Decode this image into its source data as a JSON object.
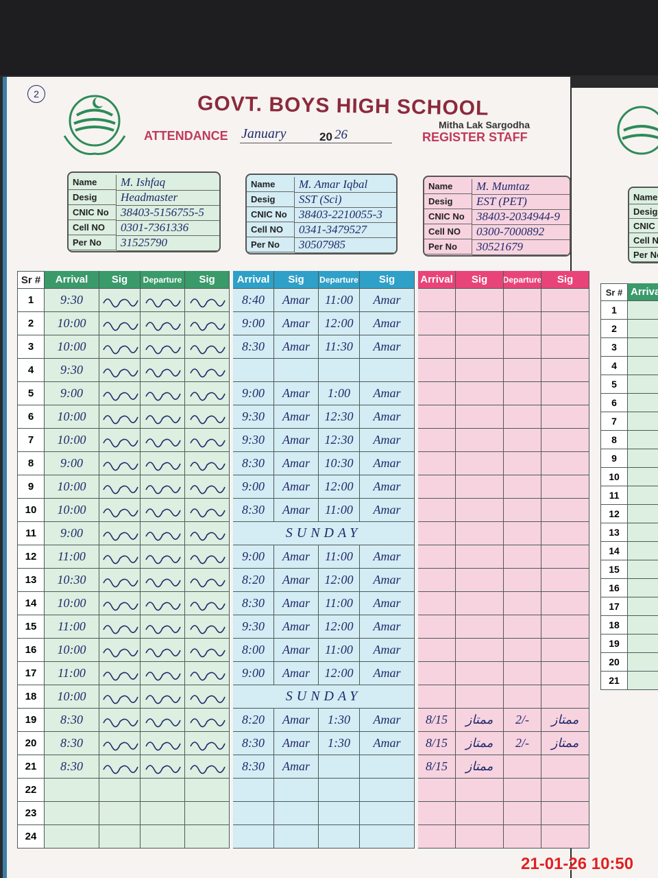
{
  "page_number": "2",
  "header": {
    "title": "GOVT. BOYS HIGH SCHOOL",
    "subtitle": "Mitha Lak Sargodha",
    "attendance_label": "ATTENDANCE",
    "month": "January",
    "year_prefix": "20",
    "year_suffix": "26",
    "register": "REGISTER STAFF"
  },
  "card_labels": [
    "Name",
    "Desig",
    "CNIC No",
    "Cell NO",
    "Per No"
  ],
  "table": {
    "columns": [
      "Sr #",
      "Arrival",
      "Sig",
      "Departure",
      "Sig"
    ],
    "sr": [
      1,
      2,
      3,
      4,
      5,
      6,
      7,
      8,
      9,
      10,
      11,
      12,
      13,
      14,
      15,
      16,
      17,
      18,
      19,
      20,
      21,
      22,
      23,
      24
    ]
  },
  "staff": [
    {
      "name": "M. Ishfaq",
      "desig": "Headmaster",
      "cnic": "38403-5156755-5",
      "cell": "0301-7361336",
      "per_no": "31525790",
      "rows": [
        [
          "9:30",
          null,
          null,
          null
        ],
        [
          "10:00",
          null,
          null,
          null
        ],
        [
          "10:00",
          null,
          null,
          null
        ],
        [
          "9:30",
          null,
          null,
          null
        ],
        [
          "9:00",
          null,
          null,
          null
        ],
        [
          "10:00",
          null,
          null,
          null
        ],
        [
          "10:00",
          null,
          null,
          null
        ],
        [
          "9:00",
          null,
          null,
          null
        ],
        [
          "10:00",
          null,
          null,
          null
        ],
        [
          "10:00",
          null,
          null,
          null
        ],
        [
          "9:00",
          null,
          null,
          null
        ],
        [
          "11:00",
          null,
          null,
          null
        ],
        [
          "10:30",
          null,
          null,
          null
        ],
        [
          "10:00",
          null,
          null,
          null
        ],
        [
          "11:00",
          null,
          null,
          null
        ],
        [
          "10:00",
          null,
          null,
          null
        ],
        [
          "11:00",
          null,
          null,
          null
        ],
        [
          "10:00",
          null,
          null,
          null
        ],
        [
          "8:30",
          null,
          null,
          null
        ],
        [
          "8:30",
          null,
          null,
          null
        ],
        [
          "8:30",
          null,
          null,
          null
        ],
        null,
        null,
        null
      ]
    },
    {
      "name": "M. Amar Iqbal",
      "desig": "SST (Sci)",
      "cnic": "38403-2210055-3",
      "cell": "0341-3479527",
      "per_no": "30507985",
      "rows": [
        [
          "8:40",
          "Amar",
          "11:00",
          "Amar"
        ],
        [
          "9:00",
          "Amar",
          "12:00",
          "Amar"
        ],
        [
          "8:30",
          "Amar",
          "11:30",
          "Amar"
        ],
        null,
        [
          "9:00",
          "Amar",
          "1:00",
          "Amar"
        ],
        [
          "9:30",
          "Amar",
          "12:30",
          "Amar"
        ],
        [
          "9:30",
          "Amar",
          "12:30",
          "Amar"
        ],
        [
          "8:30",
          "Amar",
          "10:30",
          "Amar"
        ],
        [
          "9:00",
          "Amar",
          "12:00",
          "Amar"
        ],
        [
          "8:30",
          "Amar",
          "11:00",
          "Amar"
        ],
        {
          "note": "SUNDAY"
        },
        [
          "9:00",
          "Amar",
          "11:00",
          "Amar"
        ],
        [
          "8:20",
          "Amar",
          "12:00",
          "Amar"
        ],
        [
          "8:30",
          "Amar",
          "11:00",
          "Amar"
        ],
        [
          "9:30",
          "Amar",
          "12:00",
          "Amar"
        ],
        [
          "8:00",
          "Amar",
          "11:00",
          "Amar"
        ],
        [
          "9:00",
          "Amar",
          "12:00",
          "Amar"
        ],
        {
          "note": "SUNDAY"
        },
        [
          "8:20",
          "Amar",
          "1:30",
          "Amar"
        ],
        [
          "8:30",
          "Amar",
          "1:30",
          "Amar"
        ],
        [
          "8:30",
          "Amar",
          null,
          null
        ],
        null,
        null,
        null
      ]
    },
    {
      "name": "M. Mumtaz",
      "desig": "EST (PET)",
      "cnic": "38403-2034944-9",
      "cell": "0300-7000892",
      "per_no": "30521679",
      "rows": [
        null,
        null,
        null,
        null,
        null,
        null,
        null,
        null,
        null,
        null,
        null,
        null,
        null,
        null,
        null,
        null,
        null,
        null,
        [
          "8/15",
          "ممتاز",
          "2/-",
          "ممتاز"
        ],
        [
          "8/15",
          "ممتاز",
          "2/-",
          "ممتاز"
        ],
        [
          "8/15",
          "ممتاز",
          null,
          null
        ],
        null,
        null,
        null
      ]
    }
  ],
  "timestamp": "21-01-26 10:50"
}
